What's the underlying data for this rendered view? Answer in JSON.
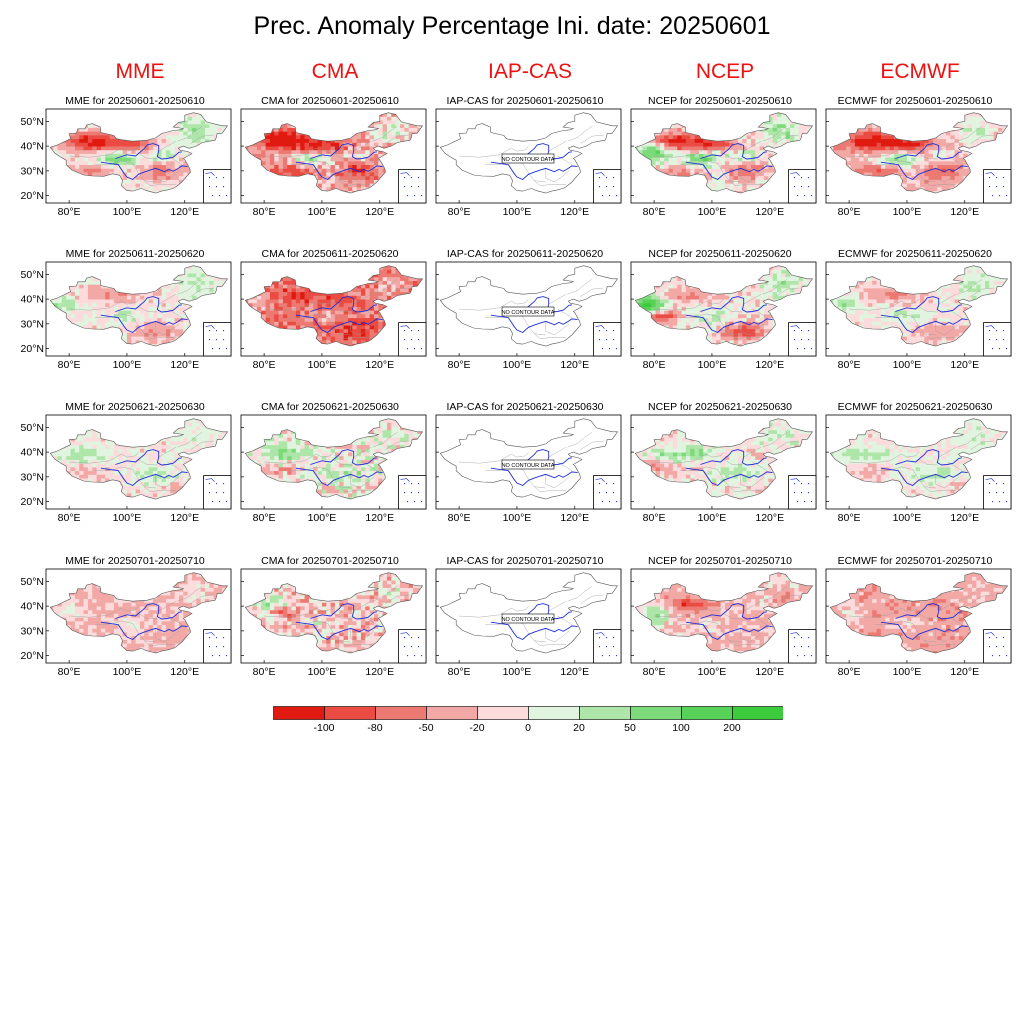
{
  "title": "Prec. Anomaly Percentage Ini. date: 20250601",
  "models": [
    "MME",
    "CMA",
    "IAP-CAS",
    "NCEP",
    "ECMWF"
  ],
  "periods": [
    "20250601-20250610",
    "20250611-20250620",
    "20250621-20250630",
    "20250701-20250710"
  ],
  "panel_title_template": "{model} for {period}",
  "lat_ticks": [
    "50°N",
    "40°N",
    "30°N",
    "20°N"
  ],
  "lon_ticks": [
    "80°E",
    "100°E",
    "120°E"
  ],
  "no_data_text": "NO CONTOUR DATA",
  "colors": {
    "title": "#000000",
    "header": "#ee1111",
    "border": "#000000",
    "river": "#1f2fd6",
    "province": "#9a9a9a"
  },
  "colorbar": {
    "labels": [
      "-100",
      "-80",
      "-50",
      "-20",
      "0",
      "20",
      "50",
      "100",
      "200"
    ],
    "colors": [
      "#e01a10",
      "#ea4b42",
      "#ec7a72",
      "#f2a9a6",
      "#fbdbdc",
      "#e1f4df",
      "#aee6aa",
      "#7dda7a",
      "#57d157",
      "#3ccb3c"
    ]
  },
  "chart_data": {
    "type": "heatmap",
    "title": "Prec. Anomaly Percentage Ini. date: 20250601",
    "variable": "precipitation anomaly percentage",
    "rows": [
      "20250601-20250610",
      "20250611-20250620",
      "20250621-20250630",
      "20250701-20250710"
    ],
    "columns": [
      "MME",
      "CMA",
      "IAP-CAS",
      "NCEP",
      "ECMWF"
    ],
    "levels": [
      -100,
      -80,
      -50,
      -20,
      0,
      20,
      50,
      100,
      200
    ],
    "x_ticks": [
      "80°E",
      "100°E",
      "120°E"
    ],
    "y_ticks": [
      "50°N",
      "40°N",
      "30°N",
      "20°N"
    ],
    "no_data_columns": [
      "IAP-CAS"
    ]
  }
}
